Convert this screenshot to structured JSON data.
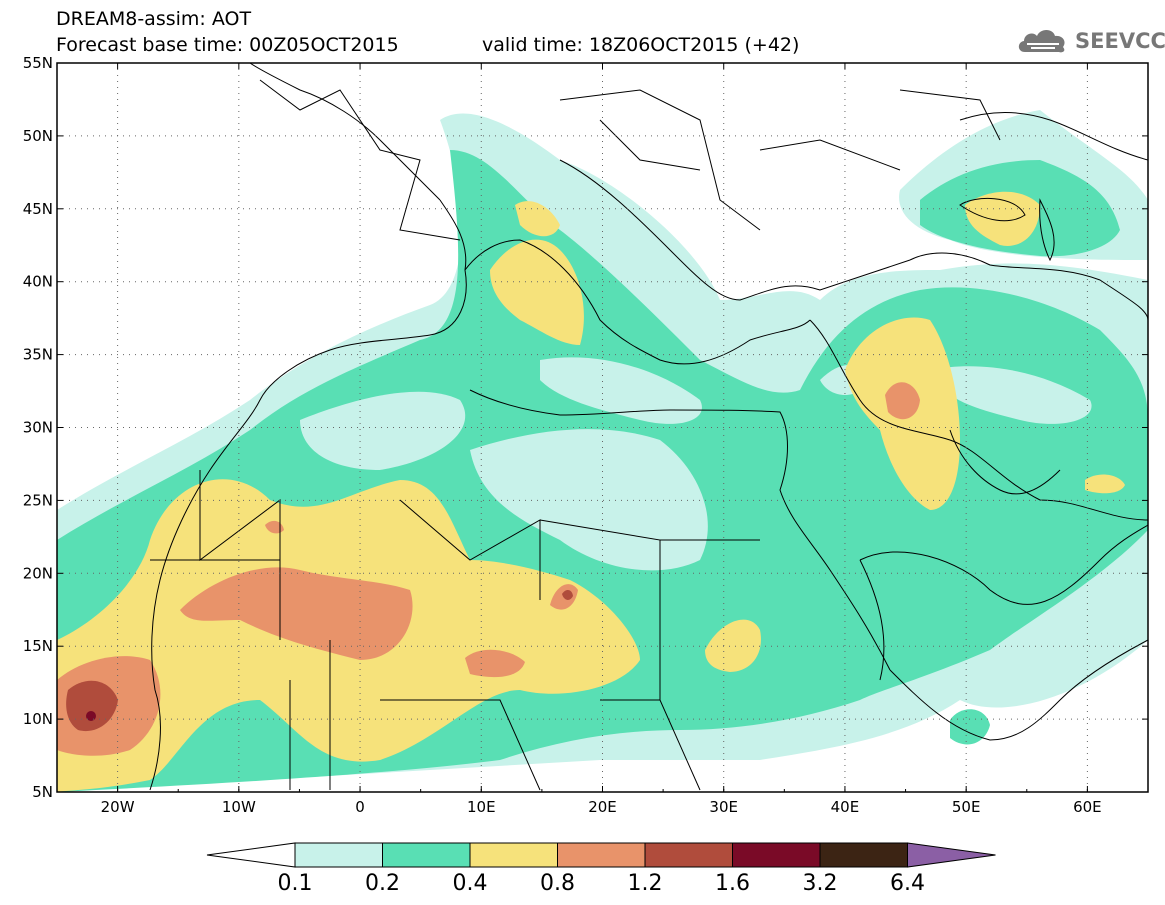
{
  "header": {
    "line1": "DREAM8-assim: AOT",
    "line2_base": "Forecast base time: 00Z05OCT2015",
    "line2_valid": "valid time: 18Z06OCT2015 (+42)"
  },
  "logo": {
    "text": "SEEVCCC",
    "icon": "cloud-icon"
  },
  "map": {
    "lon_range": [
      -25,
      65
    ],
    "lat_range": [
      5,
      55
    ],
    "lat_ticks": [
      "5N",
      "10N",
      "15N",
      "20N",
      "25N",
      "30N",
      "35N",
      "40N",
      "45N",
      "50N",
      "55N"
    ],
    "lon_ticks": [
      "20W",
      "10W",
      "0",
      "10E",
      "20E",
      "30E",
      "40E",
      "50E",
      "60E"
    ],
    "grid": "dotted"
  },
  "legend": {
    "labels": [
      "0.1",
      "0.2",
      "0.4",
      "0.8",
      "1.2",
      "1.6",
      "3.2",
      "6.4"
    ],
    "colors": [
      "#ffffff",
      "#c8f2ea",
      "#59dfb4",
      "#f6e27b",
      "#e8936a",
      "#b04c3c",
      "#7a0a27",
      "#3c2414",
      "#8b5fa5"
    ]
  }
}
